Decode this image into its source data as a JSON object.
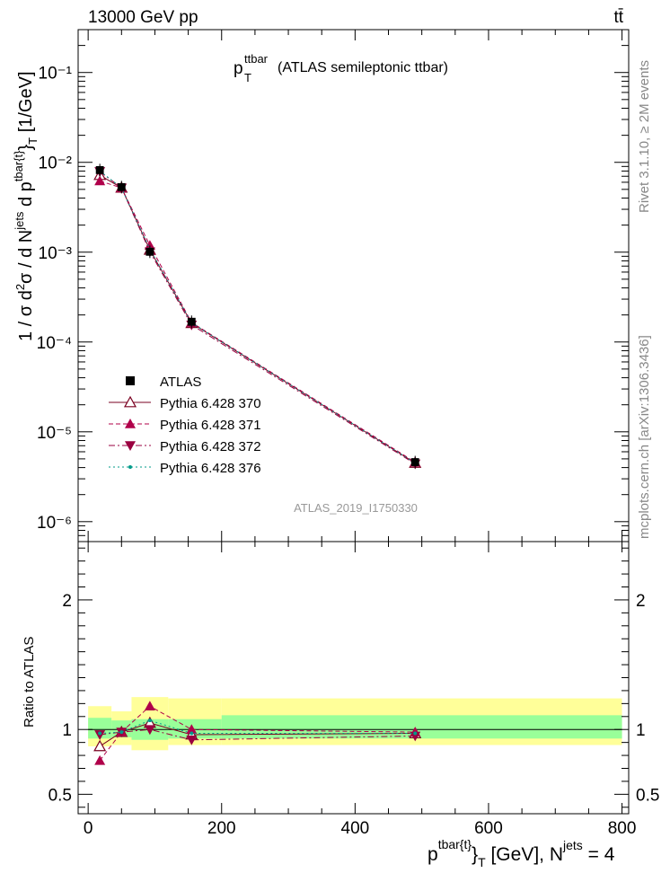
{
  "header": {
    "left": "13000 GeV pp",
    "right": "tt̄"
  },
  "side_labels": {
    "rivet": "Rivet 3.1.10, ≥ 2M events",
    "mcplots": "mcplots.cern.ch [arXiv:1306.3436]"
  },
  "title": {
    "main": "p",
    "sup": "ttbar",
    "sub": "T",
    "rest": "(ATLAS semileptonic ttbar)"
  },
  "watermark": "ATLAS_2019_I1750330",
  "axes": {
    "xlabel_main": "p",
    "xlabel_sup": "tbar{t}",
    "xlabel_close": "}",
    "xlabel_sub": "T",
    "xlabel_rest": " [GeV], N",
    "xlabel_sup2": "jets",
    "xlabel_end": " = 4",
    "ylabel_top": "1 / σ d²σ / d N^jets d p^tbar{t}_T [1/GeV]",
    "ylabel_bottom": "Ratio to ATLAS",
    "x_ticks": [
      "0",
      "200",
      "400",
      "600",
      "800"
    ],
    "y_ticks_top": [
      "10⁻⁶",
      "10⁻⁵",
      "10⁻⁴",
      "10⁻³",
      "10⁻²",
      "10⁻¹"
    ],
    "y_ticks_bottom": [
      "0.5",
      "1",
      "2"
    ]
  },
  "chart_data": {
    "type": "scatter",
    "x_range": [
      -15,
      810
    ],
    "y_top_log": true,
    "y_top_range": [
      6e-07,
      0.3
    ],
    "y_bottom_range": [
      0.35,
      2.45
    ],
    "bins": [
      [
        0,
        35
      ],
      [
        35,
        65
      ],
      [
        65,
        120
      ],
      [
        120,
        200
      ],
      [
        200,
        800
      ]
    ],
    "x": [
      17.5,
      50,
      92.5,
      155,
      490
    ],
    "data": {
      "name": "ATLAS",
      "values": [
        0.0082,
        0.0053,
        0.00101,
        0.000168,
        4.6e-06
      ],
      "ratio_band_stat_low": [
        0.93,
        0.94,
        0.92,
        0.93,
        0.93
      ],
      "ratio_band_stat_high": [
        1.09,
        1.07,
        1.08,
        1.08,
        1.11
      ],
      "ratio_band_tot_low": [
        0.87,
        0.88,
        0.84,
        0.88,
        0.88
      ],
      "ratio_band_tot_high": [
        1.18,
        1.14,
        1.25,
        1.24,
        1.24
      ]
    },
    "series": [
      {
        "name": "Pythia 6.428 370",
        "color": "#7a0020",
        "style": "solid",
        "marker": "open-triangle-up",
        "values": [
          0.0072,
          0.0052,
          0.00106,
          0.000162,
          4.5e-06
        ],
        "ratio": [
          0.87,
          0.98,
          1.05,
          0.96,
          0.97
        ]
      },
      {
        "name": "Pythia 6.428 371",
        "color": "#b0004a",
        "style": "dashed",
        "marker": "filled-triangle-up",
        "values": [
          0.0062,
          0.0052,
          0.00119,
          0.000165,
          4.6e-06
        ],
        "ratio": [
          0.76,
          0.98,
          1.18,
          1.0,
          0.98
        ]
      },
      {
        "name": "Pythia 6.428 372",
        "color": "#9a0040",
        "style": "dashdot",
        "marker": "filled-triangle-down",
        "values": [
          0.0079,
          0.0052,
          0.00101,
          0.000155,
          4.4e-06
        ],
        "ratio": [
          0.96,
          0.98,
          1.0,
          0.92,
          0.95
        ]
      },
      {
        "name": "Pythia 6.428 376",
        "color": "#009b8a",
        "style": "dotted",
        "marker": "dot",
        "values": [
          0.008,
          0.0052,
          0.00108,
          0.000163,
          4.5e-06
        ],
        "ratio": [
          0.97,
          0.98,
          1.07,
          0.97,
          0.97
        ]
      }
    ],
    "legend_position": "middle-left"
  }
}
